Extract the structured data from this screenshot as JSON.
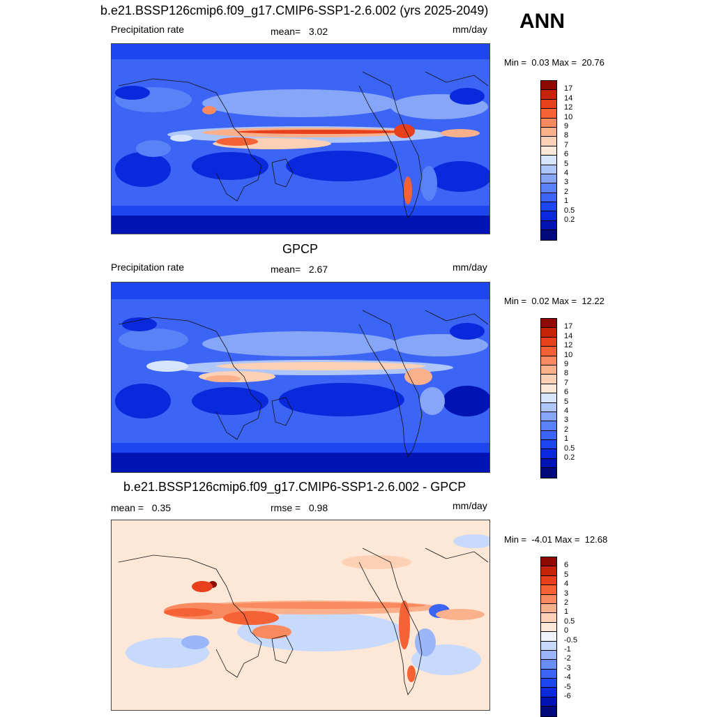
{
  "season": "ANN",
  "palette_precip": [
    "#000a7a",
    "#0014b4",
    "#0a28dc",
    "#1e46f0",
    "#3c64f5",
    "#5a82f7",
    "#86a6f8",
    "#aec6fa",
    "#d6e4fc",
    "#fde8d8",
    "#fcd0b4",
    "#fbb08c",
    "#f98a60",
    "#f56235",
    "#e8401c",
    "#c42408",
    "#8c0a00"
  ],
  "palette_diff": [
    "#000a7a",
    "#0014b4",
    "#0a28dc",
    "#1e46f0",
    "#3c64f5",
    "#6a8ef7",
    "#9ab6f9",
    "#c8dafb",
    "#f0f4fe",
    "#fde8d8",
    "#fcd0b4",
    "#fbb08c",
    "#f98a60",
    "#f56235",
    "#e8401c",
    "#c42408",
    "#8c0a00"
  ],
  "panels": [
    {
      "title": "b.e21.BSSP126cmip6.f09_g17.CMIP6-SSP1-2.6.002 (yrs 2025-2049)",
      "left_label": "Precipitation rate",
      "mean_label": "mean=",
      "mean_value": "3.02",
      "units": "mm/day",
      "min_label": "Min =",
      "min_value": "0.03",
      "max_label": "Max =",
      "max_value": "20.76",
      "ticks": [
        "17",
        "14",
        "12",
        "10",
        "9",
        "8",
        "7",
        "6",
        "5",
        "4",
        "3",
        "2",
        "1",
        "0.5",
        "0.2"
      ]
    },
    {
      "title": "GPCP",
      "left_label": "Precipitation rate",
      "mean_label": "mean=",
      "mean_value": "2.67",
      "units": "mm/day",
      "min_label": "Min =",
      "min_value": "0.02",
      "max_label": "Max =",
      "max_value": "12.22",
      "ticks": [
        "17",
        "14",
        "12",
        "10",
        "9",
        "8",
        "7",
        "6",
        "5",
        "4",
        "3",
        "2",
        "1",
        "0.5",
        "0.2"
      ]
    },
    {
      "title": "b.e21.BSSP126cmip6.f09_g17.CMIP6-SSP1-2.6.002 - GPCP",
      "left_label": "mean =",
      "left_value": "0.35",
      "rmse_label": "rmse =",
      "rmse_value": "0.98",
      "units": "mm/day",
      "min_label": "Min =",
      "min_value": "-4.01",
      "max_label": "Max =",
      "max_value": "12.68",
      "ticks": [
        "6",
        "5",
        "4",
        "3",
        "2",
        "1",
        "0.5",
        "0",
        "-0.5",
        "-1",
        "-2",
        "-3",
        "-4",
        "-5",
        "-6"
      ]
    }
  ]
}
